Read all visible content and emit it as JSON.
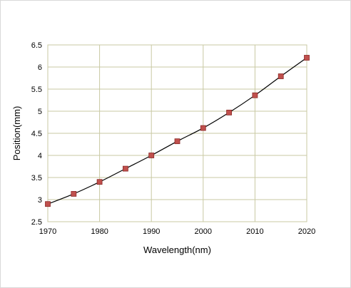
{
  "chart_data": {
    "type": "scatter",
    "title": "",
    "xlabel": "Wavelength(nm)",
    "ylabel": "Position(mm)",
    "xlim": [
      1970,
      2020
    ],
    "ylim": [
      2.5,
      6.5
    ],
    "x_ticks": [
      "1970",
      "1980",
      "1990",
      "2000",
      "2010",
      "2020"
    ],
    "y_ticks": [
      "2.5",
      "3",
      "3.5",
      "4",
      "4.5",
      "5",
      "5.5",
      "6",
      "6.5"
    ],
    "grid": true,
    "legend": "none",
    "series": [
      {
        "marker": "square",
        "trendline": true,
        "x": [
          1970,
          1975,
          1980,
          1985,
          1990,
          1995,
          2000,
          2005,
          2010,
          2015,
          2020
        ],
        "y": [
          2.9,
          3.13,
          3.4,
          3.7,
          4.0,
          4.32,
          4.62,
          4.97,
          5.36,
          5.79,
          6.21
        ]
      }
    ],
    "colors": {
      "marker_fill": "#c0504d",
      "marker_edge": "#8b2a28",
      "line": "#000000",
      "grid": "#c9c9a3",
      "frame": "#c9c9a3",
      "chart_border": "#d9d9d9"
    }
  }
}
